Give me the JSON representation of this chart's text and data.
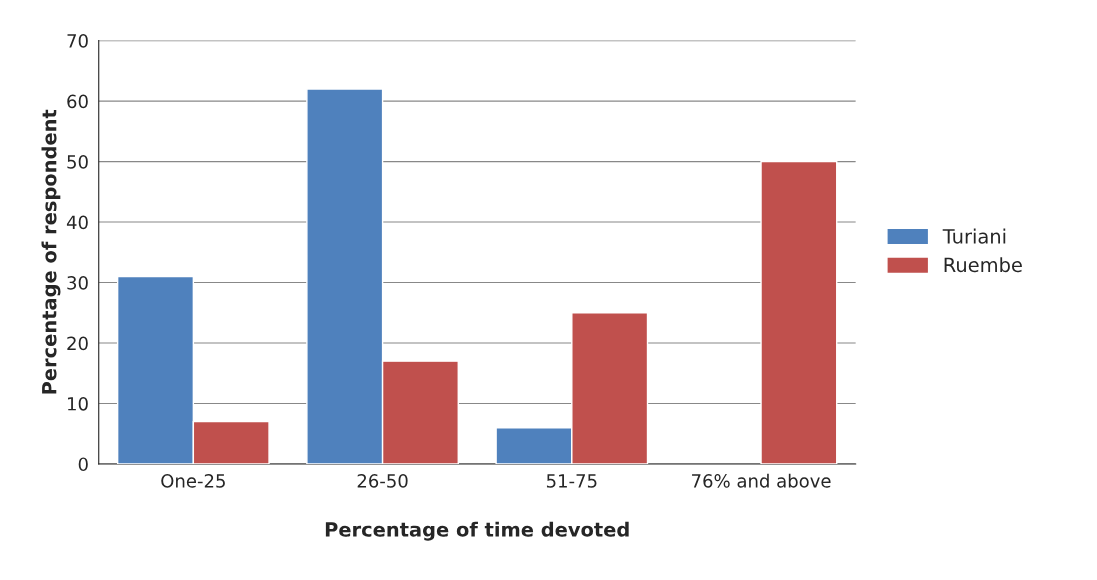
{
  "chart_data": {
    "type": "bar",
    "xlabel": "Percentage of time devoted",
    "ylabel": "Percentage of respondent",
    "categories": [
      "One-25",
      "26-50",
      "51-75",
      "76% and above"
    ],
    "series": [
      {
        "name": "Turiani",
        "color": "#4f81bd",
        "values": [
          31,
          62,
          6,
          null
        ]
      },
      {
        "name": "Ruembe",
        "color": "#c0504d",
        "values": [
          7,
          17,
          25,
          50
        ]
      }
    ],
    "ylim": [
      0,
      70
    ],
    "yticks": [
      0,
      10,
      20,
      30,
      40,
      50,
      60,
      70
    ],
    "grid": "y",
    "legend": "right"
  }
}
